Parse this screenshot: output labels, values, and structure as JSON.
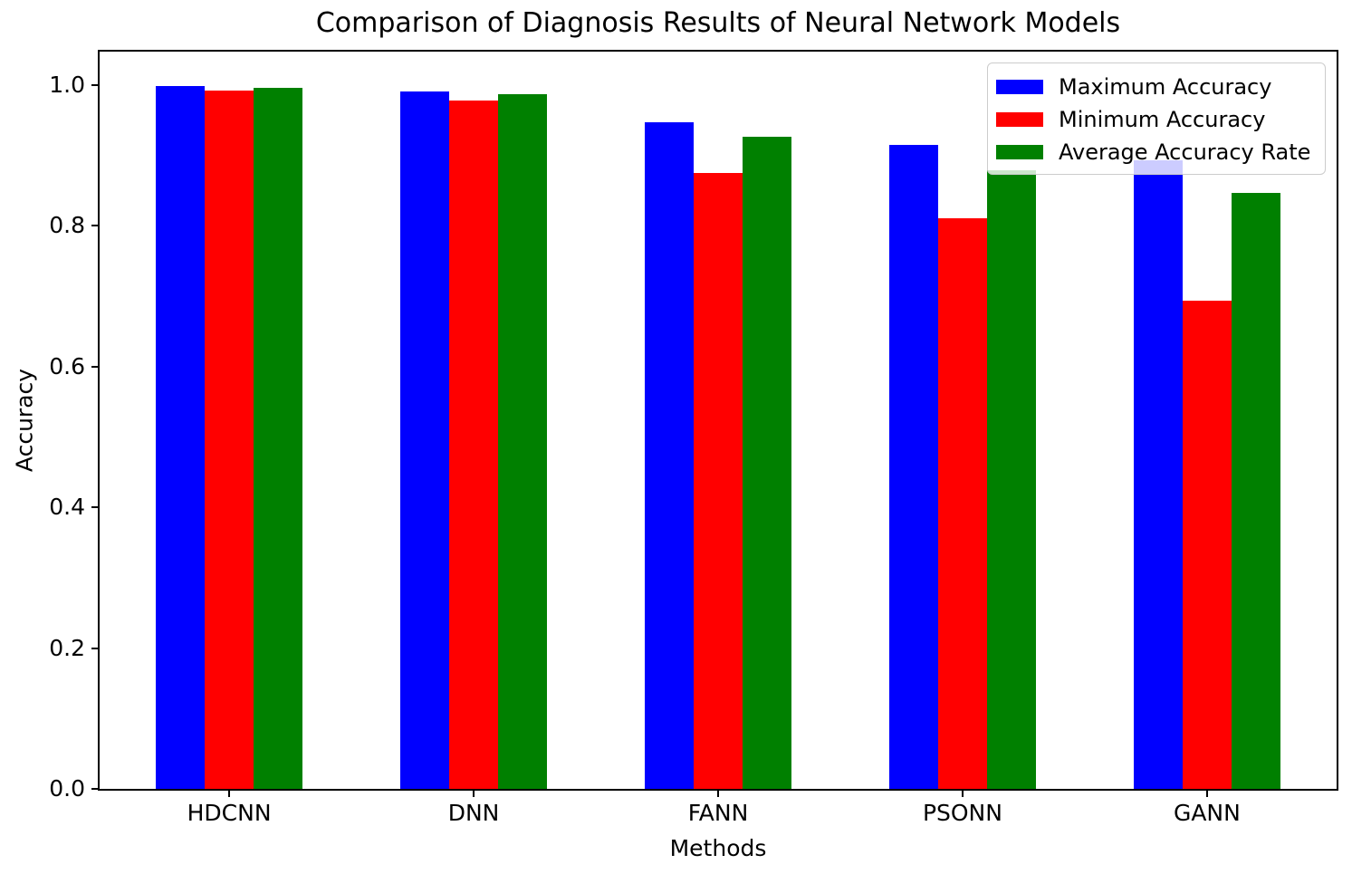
{
  "chart_data": {
    "type": "bar",
    "title": "Comparison of Diagnosis Results of Neural Network Models",
    "xlabel": "Methods",
    "ylabel": "Accuracy",
    "categories": [
      "HDCNN",
      "DNN",
      "FANN",
      "PSONN",
      "GANN"
    ],
    "series": [
      {
        "name": "Maximum Accuracy",
        "color": "#0000FF",
        "values": [
          0.998,
          0.991,
          0.947,
          0.915,
          0.893
        ]
      },
      {
        "name": "Minimum Accuracy",
        "color": "#FF0000",
        "values": [
          0.992,
          0.977,
          0.875,
          0.81,
          0.693
        ]
      },
      {
        "name": "Average Accuracy Rate",
        "color": "#008000",
        "values": [
          0.996,
          0.987,
          0.926,
          0.878,
          0.847
        ]
      }
    ],
    "ylim": [
      0,
      1.047
    ],
    "yticks": [
      0.0,
      0.2,
      0.4,
      0.6,
      0.8,
      1.0
    ],
    "bar_width_units": 0.2,
    "grid": false,
    "legend_position": "upper right",
    "background_color": "#ffffff",
    "axes_edge_color": "#000000"
  }
}
